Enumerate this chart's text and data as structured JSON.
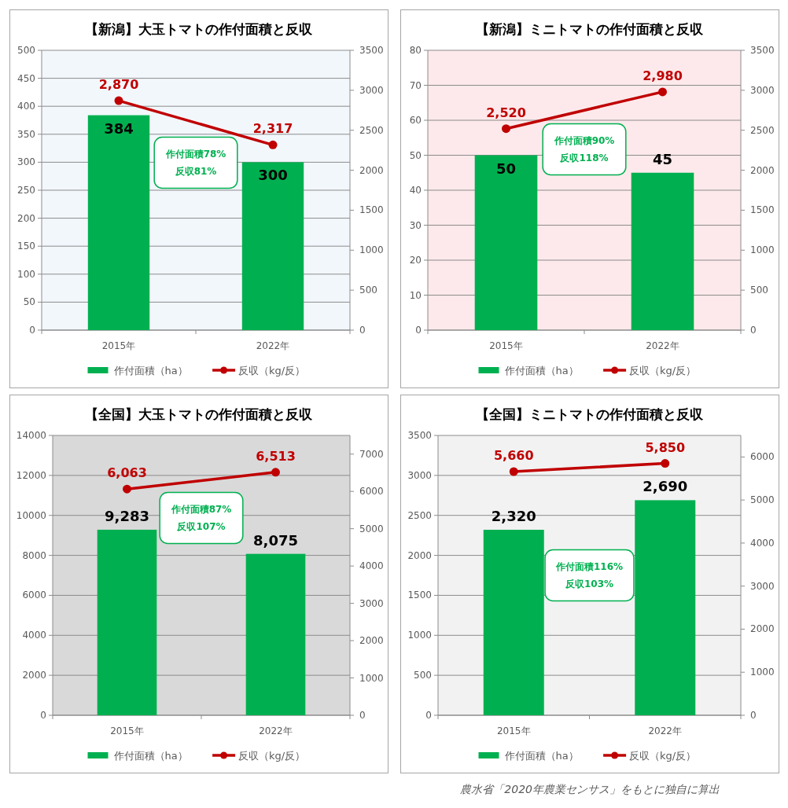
{
  "chart_data": [
    {
      "type": "bar",
      "title": "【新潟】大玉トマトの作付面積と反収",
      "categories": [
        "2015年",
        "2022年"
      ],
      "series": [
        {
          "name": "作付面積（ha）",
          "color": "#00b050",
          "values": [
            384,
            300
          ],
          "value_labels": [
            "384",
            "300"
          ]
        },
        {
          "name": "反収（kg/反）",
          "type": "line",
          "axis": "y2",
          "color": "#c00000",
          "values": [
            2870,
            2317
          ],
          "value_labels": [
            "2,870",
            "2,317"
          ]
        }
      ],
      "ylim": [
        0,
        500
      ],
      "yticks": [
        0,
        50,
        100,
        150,
        200,
        250,
        300,
        350,
        400,
        450,
        500
      ],
      "y2lim": [
        0,
        3500
      ],
      "y2ticks": [
        0,
        500,
        1000,
        1500,
        2000,
        2500,
        3000,
        3500
      ],
      "grid": "y",
      "legend": "bottom",
      "marker": "circle",
      "annotations": [
        "作付面積78%\n反収81%"
      ]
    },
    {
      "type": "bar",
      "title": "【新潟】ミニトマトの作付面積と反収",
      "categories": [
        "2015年",
        "2022年"
      ],
      "series": [
        {
          "name": "作付面積（ha）",
          "color": "#00b050",
          "values": [
            50,
            45
          ],
          "value_labels": [
            "50",
            "45"
          ]
        },
        {
          "name": "反収（kg/反）",
          "type": "line",
          "axis": "y2",
          "color": "#c00000",
          "values": [
            2520,
            2980
          ],
          "value_labels": [
            "2,520",
            "2,980"
          ]
        }
      ],
      "ylim": [
        0,
        80
      ],
      "yticks": [
        0,
        10,
        20,
        30,
        40,
        50,
        60,
        70,
        80
      ],
      "y2lim": [
        0,
        3500
      ],
      "y2ticks": [
        0,
        500,
        1000,
        1500,
        2000,
        2500,
        3000,
        3500
      ],
      "grid": "y",
      "legend": "bottom",
      "marker": "circle",
      "annotations": [
        "作付面積90%\n反収118%"
      ]
    },
    {
      "type": "bar",
      "title": "【全国】大玉トマトの作付面積と反収",
      "categories": [
        "2015年",
        "2022年"
      ],
      "series": [
        {
          "name": "作付面積（ha）",
          "color": "#00b050",
          "values": [
            9283,
            8075
          ],
          "value_labels": [
            "9,283",
            "8,075"
          ]
        },
        {
          "name": "反収（kg/反）",
          "type": "line",
          "axis": "y2",
          "color": "#c00000",
          "values": [
            6063,
            6513
          ],
          "value_labels": [
            "6,063",
            "6,513"
          ]
        }
      ],
      "ylim": [
        0,
        14000
      ],
      "yticks": [
        0,
        2000,
        4000,
        6000,
        8000,
        10000,
        12000,
        14000
      ],
      "y2lim": [
        0,
        7500
      ],
      "y2ticks": [
        0,
        1000,
        2000,
        3000,
        4000,
        5000,
        6000,
        7000
      ],
      "grid": "y",
      "legend": "bottom",
      "marker": "circle",
      "annotations": [
        "作付面積87%\n反収107%"
      ]
    },
    {
      "type": "bar",
      "title": "【全国】ミニトマトの作付面積と反収",
      "categories": [
        "2015年",
        "2022年"
      ],
      "series": [
        {
          "name": "作付面積（ha）",
          "color": "#00b050",
          "values": [
            2320,
            2690
          ],
          "value_labels": [
            "2,320",
            "2,690"
          ]
        },
        {
          "name": "反収（kg/反）",
          "type": "line",
          "axis": "y2",
          "color": "#c00000",
          "values": [
            5660,
            5850
          ],
          "value_labels": [
            "5,660",
            "5,850"
          ]
        }
      ],
      "ylim": [
        0,
        3500
      ],
      "yticks": [
        0,
        500,
        1000,
        1500,
        2000,
        2500,
        3000,
        3500
      ],
      "y2lim": [
        0,
        6500
      ],
      "y2ticks": [
        0,
        1000,
        2000,
        3000,
        4000,
        5000,
        6000
      ],
      "grid": "y",
      "legend": "bottom",
      "marker": "circle",
      "annotations": [
        "作付面積116%\n反収103%",
        "農水省「2020年農業センサス」をもとに独自に算出"
      ]
    }
  ]
}
